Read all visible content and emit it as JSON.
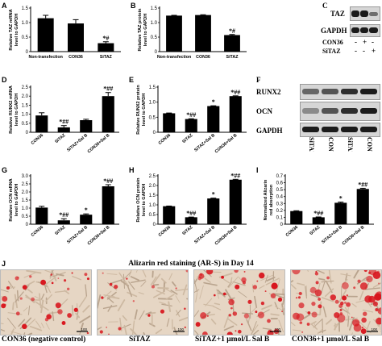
{
  "chart_data": [
    {
      "id": "A",
      "type": "bar",
      "panel_label": "A",
      "categories": [
        "Non-transfection",
        "CON36",
        "SiTAZ"
      ],
      "values": [
        1.15,
        0.97,
        0.29
      ],
      "errors": [
        0.1,
        0.13,
        0.05
      ],
      "annotations": [
        "",
        "",
        "*#"
      ],
      "ylabel": "Relative TAZ mRNA level to GAPDH",
      "ylim": [
        0,
        1.5
      ],
      "yticks": [
        "0",
        "0.5",
        "1.0",
        "1.5"
      ],
      "bar_color": "#000000"
    },
    {
      "id": "B",
      "type": "bar",
      "panel_label": "B",
      "categories": [
        "Non-transfection",
        "CON36",
        "SiTAZ"
      ],
      "values": [
        1.24,
        1.26,
        0.57
      ],
      "errors": [
        0.01,
        0.01,
        0.02
      ],
      "annotations": [
        "",
        "",
        "*#"
      ],
      "ylabel": "Relative TAZ protein level to GAPDH",
      "ylim": [
        0,
        1.5
      ],
      "yticks": [
        "0",
        "0.5",
        "1.0",
        "1.5"
      ],
      "bar_color": "#000000"
    },
    {
      "id": "D",
      "type": "bar",
      "panel_label": "D",
      "categories": [
        "CON36",
        "SiTAZ",
        "SiTAZ+Sal B",
        "CON36+Sal B"
      ],
      "values": [
        0.93,
        0.27,
        0.67,
        2.0
      ],
      "errors": [
        0.15,
        0.1,
        0.05,
        0.2
      ],
      "annotations": [
        "",
        "*##",
        "",
        "*##"
      ],
      "ylabel": "Relative RUNX2 mRNA level to GAPDH",
      "ylim": [
        0,
        2.5
      ],
      "yticks": [
        "0",
        "0.5",
        "1.0",
        "1.5",
        "2.0",
        "2.5"
      ],
      "bar_color": "#000000"
    },
    {
      "id": "E",
      "type": "bar",
      "panel_label": "E",
      "categories": [
        "CON36",
        "SiTAZ",
        "SiTAZ+Sal B",
        "CON36+Sal B"
      ],
      "values": [
        0.63,
        0.44,
        0.87,
        1.2
      ],
      "errors": [
        0.01,
        0.01,
        0.01,
        0.01
      ],
      "annotations": [
        "",
        "*##",
        "*",
        "*##"
      ],
      "ylabel": "Relative RUNX2 protein level to GAPDH",
      "ylim": [
        0,
        1.5
      ],
      "yticks": [
        "0",
        "0.5",
        "1.0",
        "1.5"
      ],
      "bar_color": "#000000"
    },
    {
      "id": "G",
      "type": "bar",
      "panel_label": "G",
      "categories": [
        "CON36",
        "SiTAZ",
        "SiTAZ+Sal B",
        "CON36+Sal B"
      ],
      "values": [
        1.03,
        0.24,
        0.59,
        2.35
      ],
      "errors": [
        0.08,
        0.1,
        0.05,
        0.1
      ],
      "annotations": [
        "",
        "*##",
        "*",
        "*##"
      ],
      "ylabel": "Relative OCN mRNA level to GAPDH",
      "ylim": [
        0,
        3.0
      ],
      "yticks": [
        "0",
        "0.5",
        "1.0",
        "1.5",
        "2.0",
        "2.5",
        "3.0"
      ],
      "bar_color": "#000000"
    },
    {
      "id": "H",
      "type": "bar",
      "panel_label": "H",
      "categories": [
        "CON36",
        "SiTAZ",
        "SiTAZ+Sal B",
        "CON36+Sal B"
      ],
      "values": [
        0.93,
        0.36,
        1.33,
        2.3
      ],
      "errors": [
        0.01,
        0.01,
        0.02,
        0.02
      ],
      "annotations": [
        "",
        "*##",
        "*",
        "*##"
      ],
      "ylabel": "Relative OCN protein level to GAPDH",
      "ylim": [
        0,
        2.5
      ],
      "yticks": [
        "0",
        "0.5",
        "1.0",
        "1.5",
        "2.0",
        "2.5"
      ],
      "bar_color": "#000000"
    },
    {
      "id": "I",
      "type": "bar",
      "panel_label": "I",
      "categories": [
        "CON36",
        "SiTAZ",
        "SiTAZ+Sal B",
        "CON36+Sal B"
      ],
      "values": [
        0.19,
        0.1,
        0.31,
        0.51
      ],
      "errors": [
        0.005,
        0.005,
        0.01,
        0.01
      ],
      "annotations": [
        "",
        "*##",
        "*",
        "*##"
      ],
      "ylabel": "Normalized Alizarin red absorption",
      "ylim": [
        0,
        0.7
      ],
      "yticks": [
        "0",
        "0.1",
        "0.2",
        "0.3",
        "0.4",
        "0.5",
        "0.6",
        "0.7"
      ],
      "bar_color": "#000000"
    }
  ],
  "blot_c": {
    "panel_label": "C",
    "rows": [
      "TAZ",
      "GAPDH"
    ],
    "conditions": [
      {
        "label": "CON36",
        "marks": [
          "-",
          "+",
          "-"
        ]
      },
      {
        "label": "SiTAZ",
        "marks": [
          "-",
          "-",
          "+"
        ]
      }
    ],
    "band_intensity": {
      "TAZ": [
        1.0,
        1.0,
        0.45
      ],
      "GAPDH": [
        1.0,
        1.0,
        1.0
      ]
    }
  },
  "blot_f": {
    "panel_label": "F",
    "rows": [
      "RUNX2",
      "OCN",
      "GAPDH"
    ],
    "lanes": [
      "SiTAZ",
      "CON36",
      "SiTAZ+Sal B",
      "CON36+Sal B"
    ],
    "band_intensity": {
      "RUNX2": [
        0.6,
        0.7,
        0.9,
        1.0
      ],
      "OCN": [
        0.4,
        0.7,
        0.9,
        1.0
      ],
      "GAPDH": [
        1.0,
        1.0,
        1.0,
        1.0
      ]
    }
  },
  "panel_j": {
    "panel_label": "J",
    "title": "Alizarin red staining (AR-S) in Day 14",
    "scale_bar": "100",
    "images": [
      {
        "caption": "CON36 (negative control)",
        "stain_density": 0.35
      },
      {
        "caption": "SiTAZ",
        "stain_density": 0.15
      },
      {
        "caption": "SiTAZ+1 μmol/L Sal B",
        "stain_density": 0.55
      },
      {
        "caption": "CON36+1 μmol/L Sal B",
        "stain_density": 0.85
      }
    ]
  },
  "colors": {
    "bar": "#000000",
    "stain": "#d8141c",
    "tissue": "#e6d6c4"
  }
}
